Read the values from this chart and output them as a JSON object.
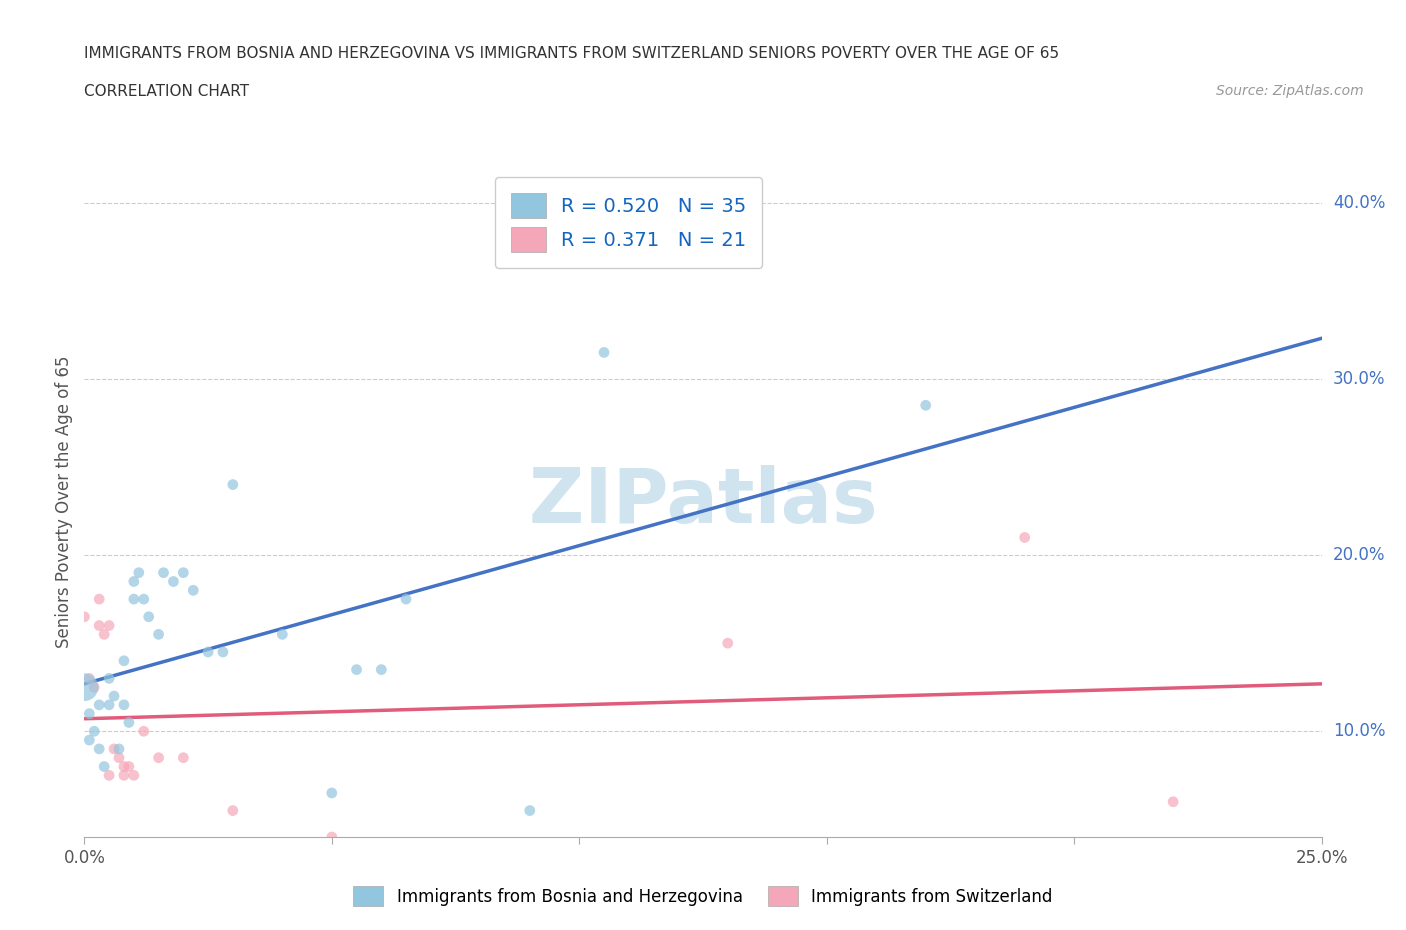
{
  "title_line1": "IMMIGRANTS FROM BOSNIA AND HERZEGOVINA VS IMMIGRANTS FROM SWITZERLAND SENIORS POVERTY OVER THE AGE OF 65",
  "title_line2": "CORRELATION CHART",
  "source_text": "Source: ZipAtlas.com",
  "ylabel": "Seniors Poverty Over the Age of 65",
  "xlim": [
    0.0,
    0.25
  ],
  "ylim": [
    0.04,
    0.42
  ],
  "xticks": [
    0.0,
    0.05,
    0.1,
    0.15,
    0.2,
    0.25
  ],
  "xticklabels": [
    "0.0%",
    "",
    "",
    "",
    "",
    "25.0%"
  ],
  "yticks": [
    0.1,
    0.2,
    0.3,
    0.4
  ],
  "yticklabels": [
    "10.0%",
    "20.0%",
    "30.0%",
    "40.0%"
  ],
  "blue_color": "#92C5DE",
  "pink_color": "#F4A7B9",
  "blue_line_color": "#4472C4",
  "pink_line_color": "#E05C7A",
  "watermark_color": "#D0E4F0",
  "R_blue": 0.52,
  "N_blue": 35,
  "R_pink": 0.371,
  "N_pink": 21,
  "blue_scatter_x": [
    0.0,
    0.001,
    0.001,
    0.002,
    0.003,
    0.003,
    0.004,
    0.005,
    0.005,
    0.006,
    0.007,
    0.008,
    0.008,
    0.009,
    0.01,
    0.01,
    0.011,
    0.012,
    0.013,
    0.015,
    0.016,
    0.018,
    0.02,
    0.022,
    0.025,
    0.028,
    0.03,
    0.04,
    0.05,
    0.055,
    0.06,
    0.065,
    0.09,
    0.105,
    0.17
  ],
  "blue_scatter_y": [
    0.125,
    0.11,
    0.095,
    0.1,
    0.115,
    0.09,
    0.08,
    0.13,
    0.115,
    0.12,
    0.09,
    0.115,
    0.14,
    0.105,
    0.175,
    0.185,
    0.19,
    0.175,
    0.165,
    0.155,
    0.19,
    0.185,
    0.19,
    0.18,
    0.145,
    0.145,
    0.24,
    0.155,
    0.065,
    0.135,
    0.135,
    0.175,
    0.055,
    0.315,
    0.285
  ],
  "blue_scatter_size": [
    400,
    60,
    60,
    60,
    60,
    60,
    60,
    60,
    60,
    60,
    60,
    60,
    60,
    60,
    60,
    60,
    60,
    60,
    60,
    60,
    60,
    60,
    60,
    60,
    60,
    60,
    60,
    60,
    60,
    60,
    60,
    60,
    60,
    60,
    60
  ],
  "pink_scatter_x": [
    0.0,
    0.001,
    0.002,
    0.003,
    0.003,
    0.004,
    0.005,
    0.005,
    0.006,
    0.007,
    0.008,
    0.008,
    0.009,
    0.01,
    0.012,
    0.015,
    0.02,
    0.03,
    0.05,
    0.13,
    0.19,
    0.22
  ],
  "pink_scatter_y": [
    0.165,
    0.13,
    0.125,
    0.175,
    0.16,
    0.155,
    0.16,
    0.075,
    0.09,
    0.085,
    0.08,
    0.075,
    0.08,
    0.075,
    0.1,
    0.085,
    0.085,
    0.055,
    0.04,
    0.15,
    0.21,
    0.06
  ],
  "pink_scatter_size": [
    60,
    60,
    60,
    60,
    60,
    60,
    60,
    60,
    60,
    60,
    60,
    60,
    60,
    60,
    60,
    60,
    60,
    60,
    60,
    60,
    60,
    60
  ],
  "legend_label_blue": "Immigrants from Bosnia and Herzegovina",
  "legend_label_pink": "Immigrants from Switzerland",
  "grid_color": "#CCCCCC",
  "background_color": "#FFFFFF",
  "tick_color": "#4472C4",
  "axis_color": "#AAAAAA"
}
